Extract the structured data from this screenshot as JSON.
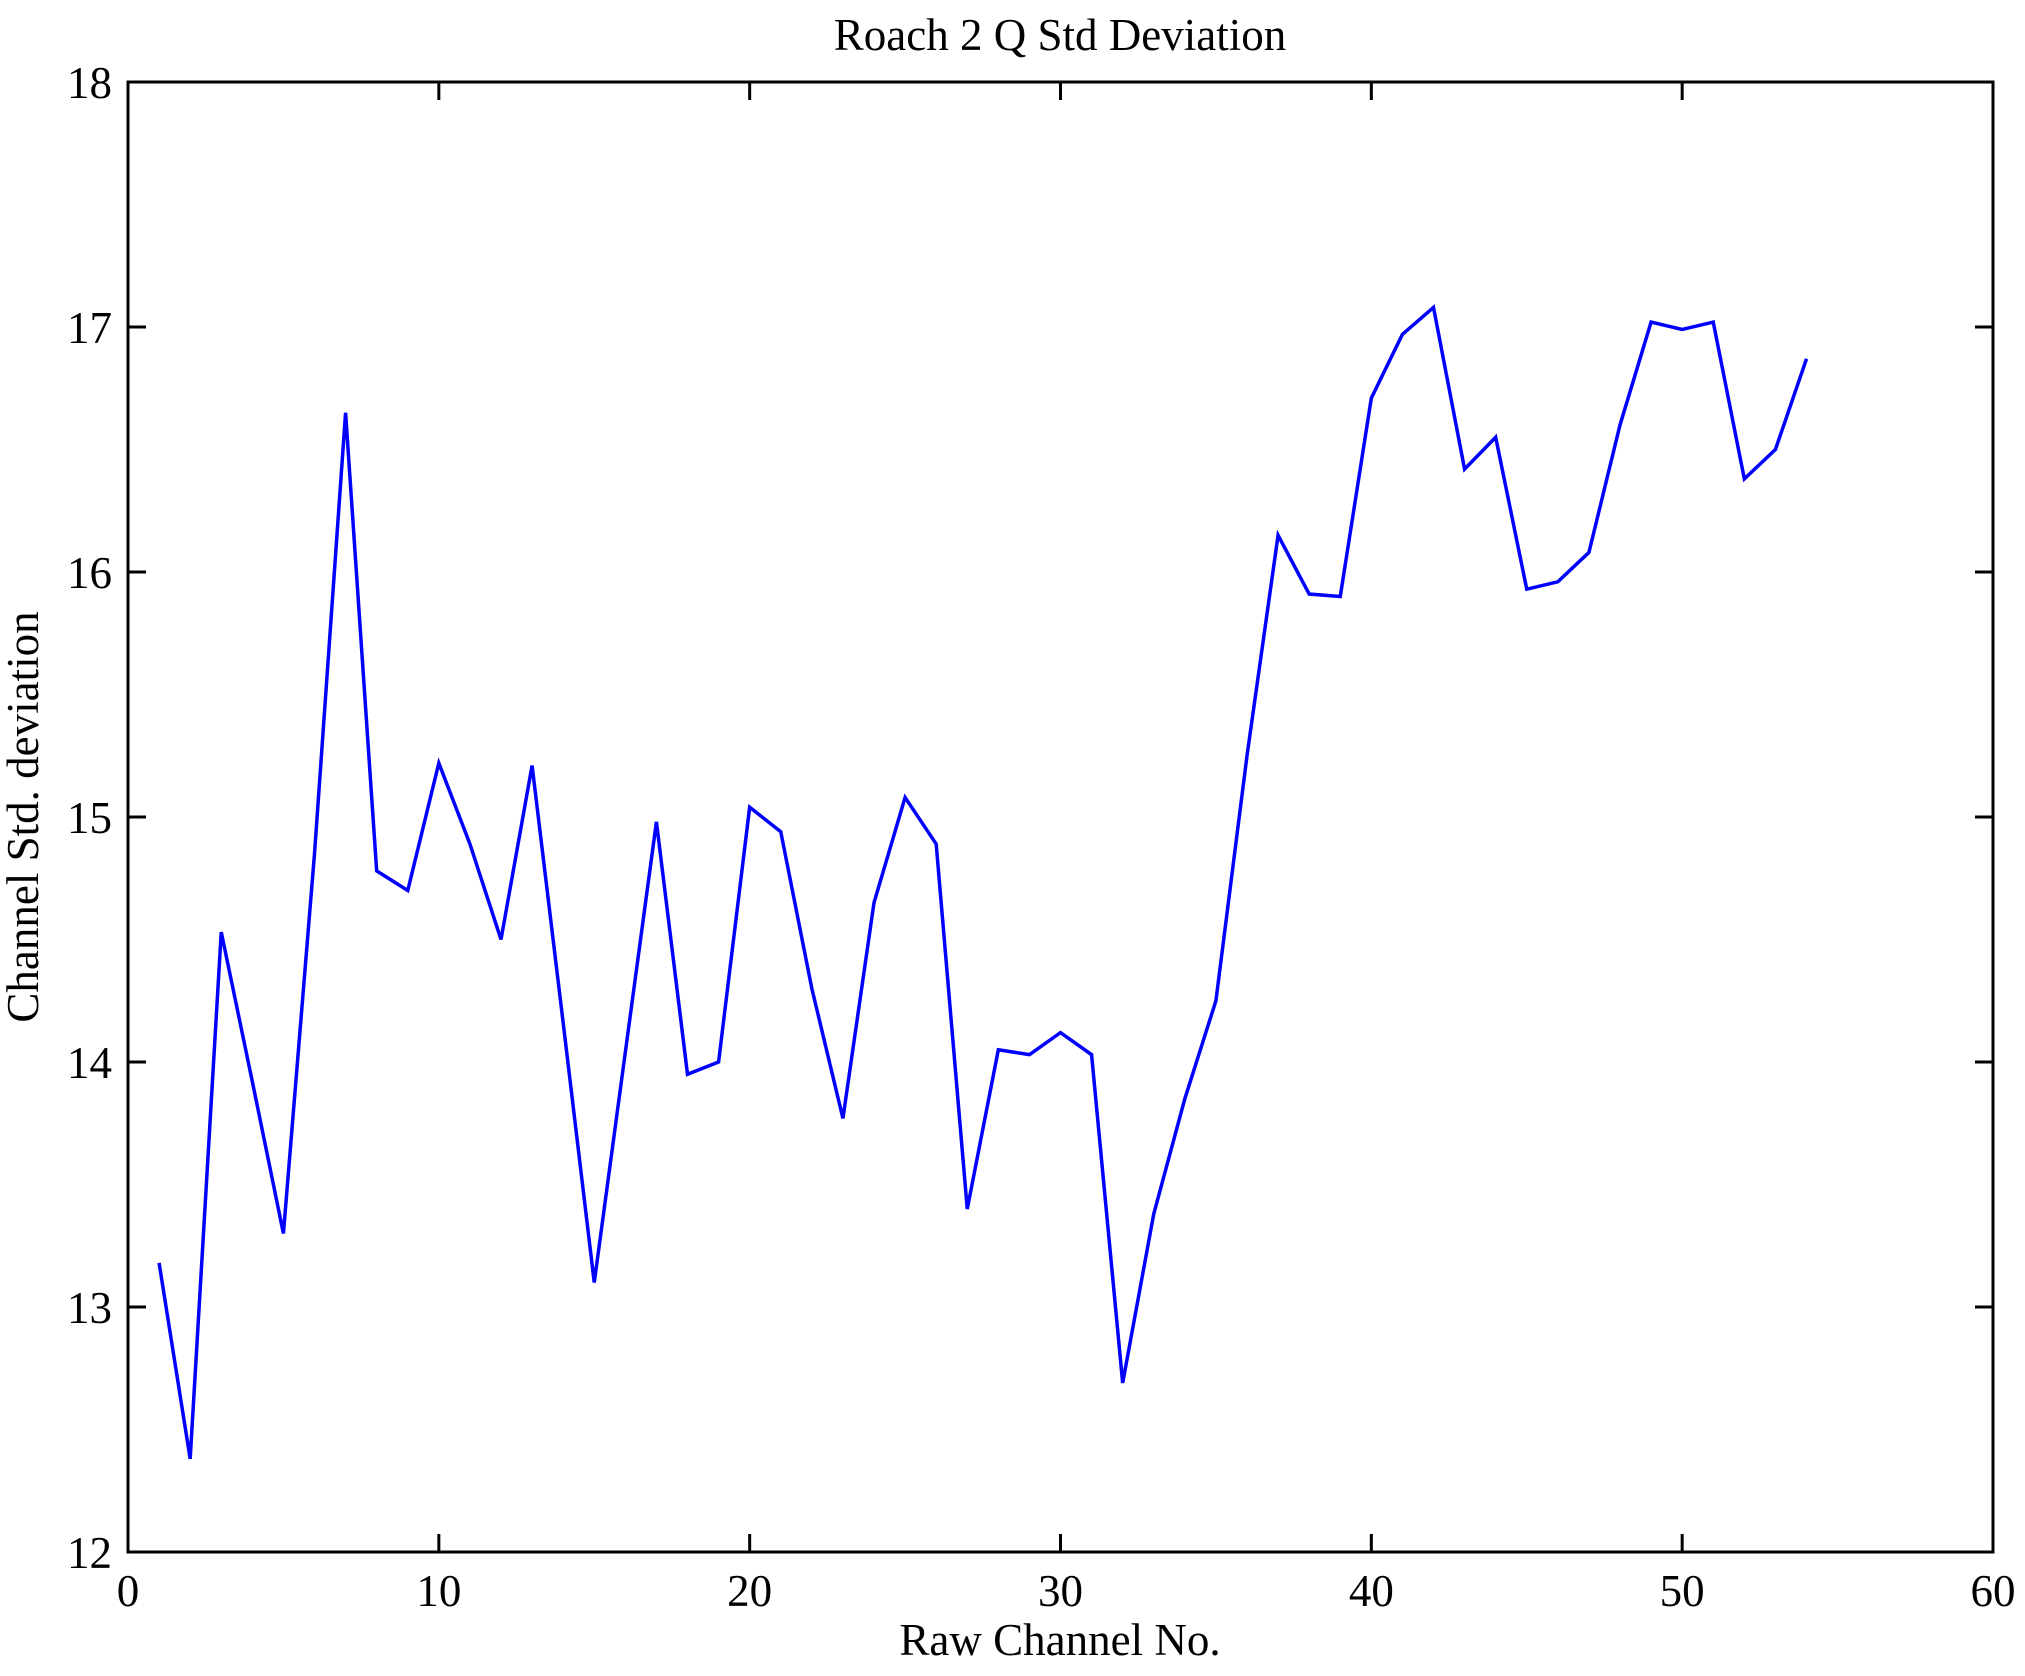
{
  "title": "Roach 2 Q Std Deviation",
  "chart_data": {
    "type": "line",
    "title": "Roach 2 Q Std Deviation",
    "xlabel": "Raw Channel No.",
    "ylabel": "Channel Std. deviation",
    "xlim": [
      0,
      60
    ],
    "ylim": [
      12,
      18
    ],
    "x_ticks": [
      "0",
      "10",
      "20",
      "30",
      "40",
      "50",
      "60"
    ],
    "y_ticks": [
      "12",
      "13",
      "14",
      "15",
      "16",
      "17",
      "18"
    ],
    "grid": false,
    "legend_position": "none",
    "line_color": "#0000ff",
    "background_color": "#ffffff",
    "series": [
      {
        "name": "channel-std-deviation",
        "x": [
          1,
          2,
          3,
          4,
          5,
          6,
          7,
          8,
          9,
          10,
          11,
          12,
          13,
          14,
          15,
          16,
          17,
          18,
          19,
          20,
          21,
          22,
          23,
          24,
          25,
          26,
          27,
          28,
          29,
          30,
          31,
          32,
          33,
          34,
          35,
          36,
          37,
          38,
          39,
          40,
          41,
          42,
          43,
          44,
          45,
          46,
          47,
          48,
          49,
          50,
          51,
          52,
          53,
          54
        ],
        "values": [
          13.18,
          12.38,
          14.53,
          13.92,
          13.3,
          14.85,
          16.65,
          14.78,
          14.7,
          15.22,
          14.89,
          14.5,
          15.21,
          14.16,
          13.1,
          14.04,
          14.98,
          13.95,
          14.0,
          15.04,
          14.94,
          14.3,
          13.77,
          14.65,
          15.08,
          14.89,
          13.4,
          14.05,
          14.03,
          14.12,
          14.03,
          12.69,
          13.38,
          13.85,
          14.25,
          15.25,
          16.15,
          15.91,
          15.9,
          16.71,
          16.97,
          17.08,
          16.42,
          16.55,
          15.93,
          15.96,
          16.08,
          16.6,
          17.02,
          16.99,
          17.02,
          16.38,
          16.5,
          16.87
        ]
      }
    ]
  }
}
